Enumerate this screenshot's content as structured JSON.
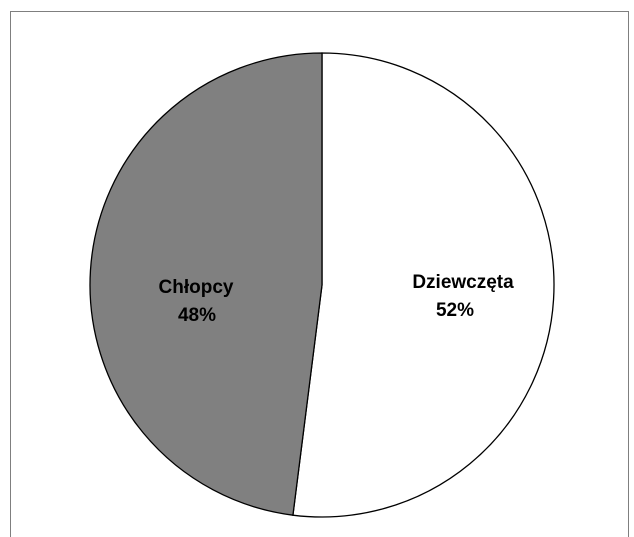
{
  "chart_data": {
    "type": "pie",
    "title": "",
    "slices": [
      {
        "label": "Dziewczęta",
        "value_label": "52%",
        "value": 52,
        "color": "#ffffff"
      },
      {
        "label": "Chłopcy",
        "value_label": "48%",
        "value": 48,
        "color": "#808080"
      }
    ],
    "start_angle_deg": 0,
    "direction": "clockwise",
    "legend": "none",
    "edge_color": "#000000"
  }
}
